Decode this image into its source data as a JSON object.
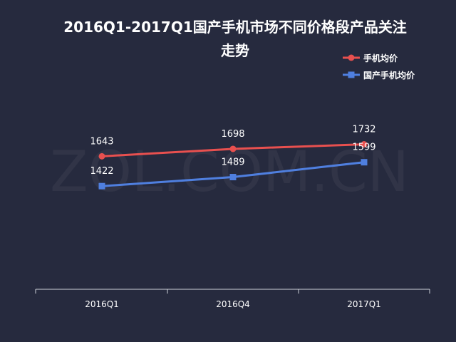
{
  "chart_data": {
    "type": "line",
    "title_line1": "2016Q1-2017Q1国产手机市场不同价格段产品关注",
    "title_line2": "走势",
    "watermark": "ZOL.COM.CN",
    "categories": [
      "2016Q1",
      "2016Q4",
      "2017Q1"
    ],
    "series": [
      {
        "name": "手机均价",
        "values": [
          1643,
          1698,
          1732
        ],
        "color": "#e8504f",
        "marker": "circle"
      },
      {
        "name": "国产手机均价",
        "values": [
          1422,
          1489,
          1599
        ],
        "color": "#4f7fdf",
        "marker": "square"
      }
    ],
    "legend_position": "top-right",
    "grid": false,
    "colors": {
      "background": "#262a3e",
      "text": "#ffffff",
      "axis": "#cfd2da"
    }
  }
}
